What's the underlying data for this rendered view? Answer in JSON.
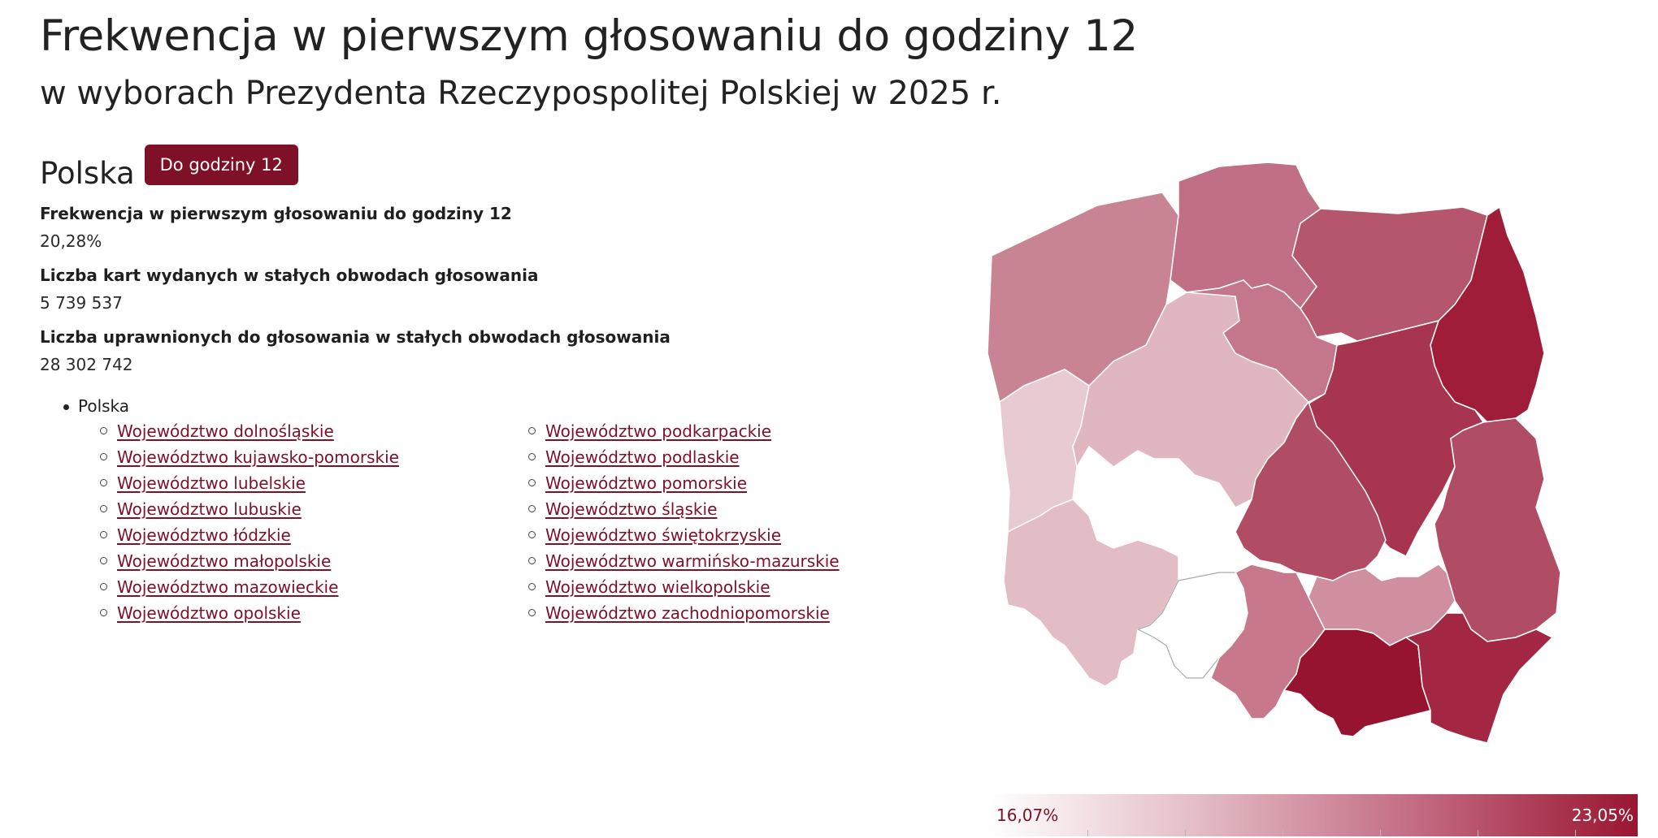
{
  "title": "Frekwencja w pierwszym głosowaniu do godziny 12",
  "subtitle": "w wyborach Prezydenta Rzeczypospolitej Polskiej w 2025 r.",
  "country": "Polska",
  "hour_badge": "Do godziny 12",
  "stats": [
    {
      "label": "Frekwencja w pierwszym głosowaniu do godziny 12",
      "value": "20,28%"
    },
    {
      "label": "Liczba kart wydanych w stałych obwodach głosowania",
      "value": "5 739 537"
    },
    {
      "label": "Liczba uprawnionych do głosowania w stałych obwodach głosowania",
      "value": "28 302 742"
    }
  ],
  "tree": {
    "root": "Polska",
    "left_column": [
      "Województwo dolnośląskie",
      "Województwo kujawsko-pomorskie",
      "Województwo lubelskie",
      "Województwo lubuskie",
      "Województwo łódzkie",
      "Województwo małopolskie",
      "Województwo mazowieckie",
      "Województwo opolskie"
    ],
    "right_column": [
      "Województwo podkarpackie",
      "Województwo podlaskie",
      "Województwo pomorskie",
      "Województwo śląskie",
      "Województwo świętokrzyskie",
      "Województwo warmińsko-mazurskie",
      "Województwo wielkopolskie",
      "Województwo zachodniopomorskie"
    ]
  },
  "map": {
    "regions": [
      {
        "name": "zachodniopomorskie",
        "color": "#c98494"
      },
      {
        "name": "pomorskie",
        "color": "#c06f84"
      },
      {
        "name": "warmińsko-mazurskie",
        "color": "#b5566d"
      },
      {
        "name": "podlaskie",
        "color": "#9f1d39"
      },
      {
        "name": "lubuskie",
        "color": "#e8cbd2"
      },
      {
        "name": "wielkopolskie",
        "color": "#e0b7c1"
      },
      {
        "name": "kujawsko-pomorskie",
        "color": "#c4778a"
      },
      {
        "name": "mazowieckie",
        "color": "#a8354f"
      },
      {
        "name": "dolnośląskie",
        "color": "#e3bdc6"
      },
      {
        "name": "łódzkie",
        "color": "#b04d64"
      },
      {
        "name": "lubelskie",
        "color": "#b04d64"
      },
      {
        "name": "opolskie",
        "color": "#ffffff"
      },
      {
        "name": "śląskie",
        "color": "#c7788b"
      },
      {
        "name": "świętokrzyskie",
        "color": "#d08f9f"
      },
      {
        "name": "małopolskie",
        "color": "#96142f"
      },
      {
        "name": "podkarpackie",
        "color": "#a32743"
      }
    ]
  },
  "legend": {
    "min": "16,07%",
    "max": "23,05%"
  }
}
